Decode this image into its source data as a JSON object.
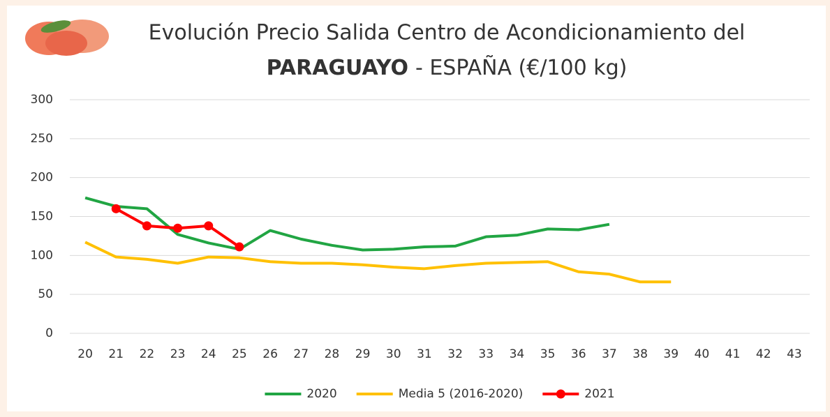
{
  "chart_data": {
    "type": "line",
    "title": "Evolución Precio Salida Centro de Acondicionamiento del",
    "title_bold": "PARAGUAYO",
    "title_rest": "- ESPAÑA (€/100 kg)",
    "categories": [
      "20",
      "21",
      "22",
      "23",
      "24",
      "25",
      "26",
      "27",
      "28",
      "29",
      "30",
      "31",
      "32",
      "33",
      "34",
      "35",
      "36",
      "37",
      "38",
      "39",
      "40",
      "41",
      "42",
      "43"
    ],
    "series": [
      {
        "name": "2020",
        "color": "#21a543",
        "marker": false,
        "values": [
          174,
          163,
          160,
          127,
          116,
          108,
          132,
          121,
          113,
          107,
          108,
          111,
          112,
          124,
          126,
          134,
          133,
          140,
          null,
          null,
          null,
          null,
          null,
          null
        ]
      },
      {
        "name": "Media 5 (2016-2020)",
        "color": "#ffc000",
        "marker": false,
        "values": [
          117,
          98,
          95,
          90,
          98,
          97,
          92,
          90,
          90,
          88,
          85,
          83,
          87,
          90,
          91,
          92,
          79,
          76,
          66,
          66,
          null,
          null,
          null,
          null
        ]
      },
      {
        "name": "2021",
        "color": "#ff0000",
        "marker": true,
        "values": [
          null,
          160,
          138,
          135,
          138,
          111,
          null,
          null,
          null,
          null,
          null,
          null,
          null,
          null,
          null,
          null,
          null,
          null,
          null,
          null,
          null,
          null,
          null,
          null
        ]
      }
    ],
    "ylim": [
      0,
      300
    ],
    "yticks": [
      0,
      50,
      100,
      150,
      200,
      250,
      300
    ],
    "grid": true,
    "legend": "bottom"
  }
}
